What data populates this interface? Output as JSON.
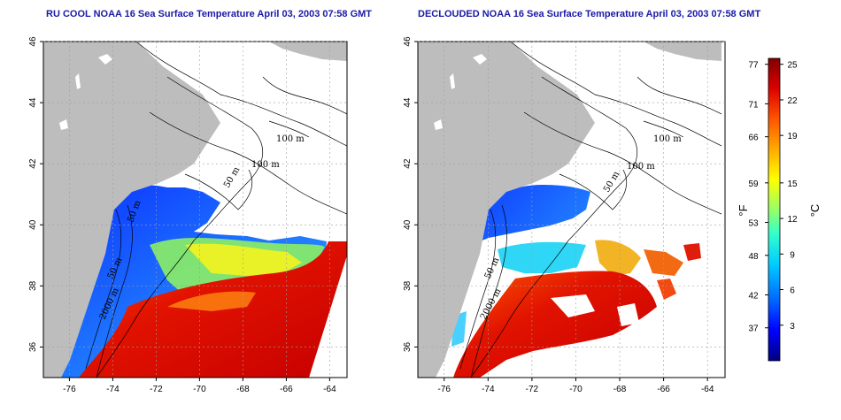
{
  "titles": {
    "left": "RU COOL NOAA 16 Sea Surface Temperature April 03, 2003 07:58 GMT",
    "right": "DECLOUDED NOAA 16 Sea Surface Temperature April 03, 2003 07:58 GMT"
  },
  "axes": {
    "lon_ticks": [
      "-76",
      "-74",
      "-72",
      "-70",
      "-68",
      "-66",
      "-64"
    ],
    "lat_ticks": [
      "36",
      "38",
      "40",
      "42",
      "44",
      "46"
    ],
    "lon_range": [
      -77.2,
      -63.2
    ],
    "lat_range": [
      35.0,
      46.0
    ]
  },
  "contour_labels": {
    "left": [
      "100 m",
      "100 m",
      "50 m",
      "50 m",
      "2000 m",
      "50 m"
    ],
    "right": [
      "100 m",
      "100 m",
      "50 m",
      "50 m",
      "2000 m"
    ]
  },
  "colorbar": {
    "fahrenheit_unit": "°F",
    "celsius_unit": "°C",
    "fahrenheit_ticks": [
      "77",
      "71",
      "66",
      "59",
      "53",
      "48",
      "42",
      "37"
    ],
    "celsius_ticks": [
      "25",
      "22",
      "19",
      "15",
      "12",
      "9",
      "6",
      "3"
    ],
    "celsius_range": [
      0,
      25.5
    ],
    "colors": [
      "#00007f",
      "#0000ff",
      "#0066ff",
      "#00ccff",
      "#33ffcc",
      "#99ff66",
      "#ffff00",
      "#ffaa00",
      "#ff5500",
      "#dd0000",
      "#800000"
    ]
  },
  "colors": {
    "land": "#bdbdbd",
    "ocean_no_data": "#ffffff",
    "title": "#1a1aa8"
  }
}
